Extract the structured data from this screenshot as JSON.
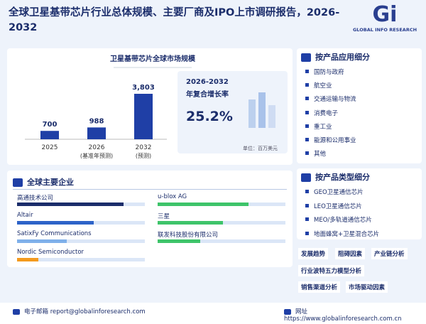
{
  "header": {
    "title": "全球卫星基带芯片行业总体规模、主要厂商及IPO上市调研报告，2026-2032",
    "logo_mark": "Gi",
    "logo_text": "GLOBAL INFO RESEARCH"
  },
  "chart_data": {
    "type": "bar",
    "title": "卫星基带芯片全球市场规模",
    "categories": [
      "2025",
      "2026",
      "2032"
    ],
    "category_notes": [
      null,
      "(基准年预测)",
      "(预测)"
    ],
    "values": [
      700,
      988,
      3803
    ],
    "value_labels": [
      "700",
      "988",
      "3,803"
    ],
    "color": "#1f3fa6"
  },
  "cagr": {
    "period": "2026-2032",
    "label": "年复合增长率",
    "value": "25.2%",
    "unit": "单位：百万美元"
  },
  "companies": {
    "title": "全球主要企业",
    "items": [
      "高通技术公司",
      "u-blox AG",
      "Altair",
      "三星",
      "SatixFy Communications",
      "联发科技股份有限公司",
      "Nordic Semiconductor"
    ]
  },
  "applications": {
    "title": "按产品应用细分",
    "items": [
      "国防与政府",
      "航空业",
      "交通运输与物流",
      "消费电子",
      "重工业",
      "能源和公用事业",
      "其他"
    ]
  },
  "product_types": {
    "title": "按产品类型细分",
    "items": [
      "GEO卫星通信芯片",
      "LEO卫星通信芯片",
      "MEO/多轨道通信芯片",
      "地面蜂窝+卫星混合芯片"
    ]
  },
  "tags": [
    "发展趋势",
    "阻碍因素",
    "产业链分析",
    "行业波特五力模型分析",
    "销售渠道分析",
    "市场驱动因素"
  ],
  "footer": {
    "email_label": "电子邮箱",
    "email": "report@globalinforesearch.com",
    "site_label": "网址",
    "site": "https://www.globalinforesearch.com.cn"
  }
}
